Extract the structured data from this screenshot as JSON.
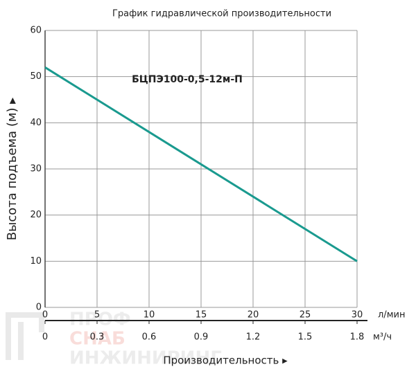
{
  "chart_data": {
    "type": "line",
    "title": "График гидравлической производительности",
    "ylabel": "Высота подъема (м) ▸",
    "xlabel": "Производительность ▸",
    "xunit": "л/мин",
    "x2unit": "м³/ч",
    "x": [
      0,
      30
    ],
    "series": [
      {
        "name": "БЦПЭ100-0,5-12м-П",
        "color": "#1a9a8f",
        "values": [
          52,
          10
        ]
      }
    ],
    "xlim": [
      0,
      30
    ],
    "xticks": [
      0,
      5,
      10,
      15,
      20,
      25,
      30
    ],
    "x2lim": [
      0,
      1.8
    ],
    "x2ticks": [
      0,
      0.3,
      0.6,
      0.9,
      1.2,
      1.5,
      1.8
    ],
    "ylim": [
      0,
      60
    ],
    "yticks": [
      0,
      10,
      20,
      30,
      40,
      50,
      60
    ],
    "grid": true,
    "watermark": [
      "ПРОФ",
      "СНАБ",
      "ИНЖИНИРИНГ"
    ]
  }
}
